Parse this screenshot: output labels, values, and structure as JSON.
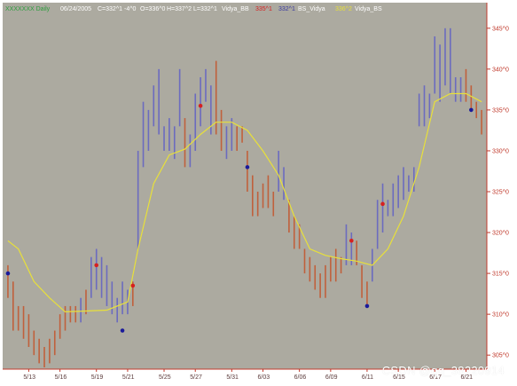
{
  "header": {
    "symbol": "XXXXXXX Daily",
    "date": "06/24/2005",
    "close": "C=332^1",
    "change": "-4^0",
    "open": "O=336^0",
    "high": "H=337^2",
    "low": "L=332^1",
    "ind1": "Vidya_BB",
    "ind1_val": "335^1",
    "ind2_val": "332^1",
    "ind2": "BS_Vidya",
    "ind3_val": "336^2",
    "ind3": "Vidya_BS"
  },
  "watermark": "CSDN @qq_38220914",
  "colors": {
    "background": "#acaaa0",
    "up_bar": "#6b6bbf",
    "down_bar": "#c0603c",
    "vidya_line": "#e8e03a",
    "buy_dot": "#1a1a9a",
    "sell_dot": "#d62020",
    "axis_text": "#c0392b"
  },
  "chart_data": {
    "type": "ohlc",
    "title": "",
    "y_axis_labels": [
      "345^0",
      "340^0",
      "335^0",
      "330^0",
      "325^0",
      "320^0",
      "315^0",
      "310^0",
      "305^0"
    ],
    "y_axis_values": [
      345,
      340,
      335,
      330,
      325,
      320,
      315,
      310,
      305
    ],
    "ylim": [
      303.5,
      346.5
    ],
    "x_axis_labels": [
      "5/13",
      "5/16",
      "5/19",
      "5/21",
      "5/25",
      "5/27",
      "5/31",
      "6/03",
      "6/06",
      "6/09",
      "6/11",
      "6/15",
      "6/17",
      "6/21"
    ],
    "grid": false,
    "bars": [
      {
        "h": 316,
        "l": 312,
        "dir": "down"
      },
      {
        "h": 314,
        "l": 308,
        "dir": "down"
      },
      {
        "h": 311,
        "l": 308,
        "dir": "down"
      },
      {
        "h": 311,
        "l": 307,
        "dir": "down"
      },
      {
        "h": 310,
        "l": 306,
        "dir": "down"
      },
      {
        "h": 308,
        "l": 305,
        "dir": "down"
      },
      {
        "h": 307,
        "l": 304,
        "dir": "down"
      },
      {
        "h": 306,
        "l": 303.5,
        "dir": "down"
      },
      {
        "h": 307,
        "l": 304,
        "dir": "down"
      },
      {
        "h": 308,
        "l": 305,
        "dir": "down"
      },
      {
        "h": 310,
        "l": 307,
        "dir": "down"
      },
      {
        "h": 311,
        "l": 308,
        "dir": "down"
      },
      {
        "h": 311,
        "l": 309,
        "dir": "down"
      },
      {
        "h": 311,
        "l": 309,
        "dir": "down"
      },
      {
        "h": 312,
        "l": 309,
        "dir": "up"
      },
      {
        "h": 313,
        "l": 310,
        "dir": "down"
      },
      {
        "h": 317,
        "l": 312,
        "dir": "up"
      },
      {
        "h": 318,
        "l": 313,
        "dir": "up"
      },
      {
        "h": 317,
        "l": 312,
        "dir": "up"
      },
      {
        "h": 316,
        "l": 311,
        "dir": "up"
      },
      {
        "h": 314,
        "l": 310,
        "dir": "up"
      },
      {
        "h": 312,
        "l": 309,
        "dir": "up"
      },
      {
        "h": 314,
        "l": 310,
        "dir": "up"
      },
      {
        "h": 313,
        "l": 310,
        "dir": "up"
      },
      {
        "h": 314,
        "l": 311,
        "dir": "down"
      },
      {
        "h": 330,
        "l": 318,
        "dir": "up"
      },
      {
        "h": 336,
        "l": 328,
        "dir": "up"
      },
      {
        "h": 335,
        "l": 330,
        "dir": "up"
      },
      {
        "h": 338,
        "l": 333,
        "dir": "up"
      },
      {
        "h": 340,
        "l": 332,
        "dir": "up"
      },
      {
        "h": 333,
        "l": 330,
        "dir": "up"
      },
      {
        "h": 334,
        "l": 330,
        "dir": "up"
      },
      {
        "h": 333,
        "l": 329,
        "dir": "up"
      },
      {
        "h": 340,
        "l": 333,
        "dir": "up"
      },
      {
        "h": 334,
        "l": 328,
        "dir": "down"
      },
      {
        "h": 332,
        "l": 328,
        "dir": "up"
      },
      {
        "h": 337,
        "l": 330,
        "dir": "up"
      },
      {
        "h": 339,
        "l": 333,
        "dir": "up"
      },
      {
        "h": 340,
        "l": 336,
        "dir": "up"
      },
      {
        "h": 338,
        "l": 332,
        "dir": "up"
      },
      {
        "h": 341,
        "l": 332,
        "dir": "down"
      },
      {
        "h": 335,
        "l": 330,
        "dir": "down"
      },
      {
        "h": 333,
        "l": 329,
        "dir": "up"
      },
      {
        "h": 334,
        "l": 330,
        "dir": "up"
      },
      {
        "h": 333,
        "l": 330,
        "dir": "down"
      },
      {
        "h": 333,
        "l": 331,
        "dir": "down"
      },
      {
        "h": 330,
        "l": 325,
        "dir": "down"
      },
      {
        "h": 327,
        "l": 322,
        "dir": "down"
      },
      {
        "h": 325,
        "l": 322,
        "dir": "down"
      },
      {
        "h": 326,
        "l": 323,
        "dir": "down"
      },
      {
        "h": 327,
        "l": 323,
        "dir": "down"
      },
      {
        "h": 325,
        "l": 322,
        "dir": "down"
      },
      {
        "h": 330,
        "l": 325,
        "dir": "up"
      },
      {
        "h": 328,
        "l": 324,
        "dir": "up"
      },
      {
        "h": 324,
        "l": 320,
        "dir": "down"
      },
      {
        "h": 322,
        "l": 318,
        "dir": "down"
      },
      {
        "h": 321,
        "l": 318,
        "dir": "down"
      },
      {
        "h": 318,
        "l": 315,
        "dir": "down"
      },
      {
        "h": 317,
        "l": 314,
        "dir": "down"
      },
      {
        "h": 316,
        "l": 313,
        "dir": "down"
      },
      {
        "h": 315,
        "l": 312,
        "dir": "down"
      },
      {
        "h": 316,
        "l": 312,
        "dir": "down"
      },
      {
        "h": 317,
        "l": 314,
        "dir": "down"
      },
      {
        "h": 318,
        "l": 314,
        "dir": "down"
      },
      {
        "h": 317,
        "l": 315,
        "dir": "down"
      },
      {
        "h": 321,
        "l": 316,
        "dir": "up"
      },
      {
        "h": 320,
        "l": 316,
        "dir": "up"
      },
      {
        "h": 319,
        "l": 316,
        "dir": "down"
      },
      {
        "h": 316,
        "l": 312,
        "dir": "down"
      },
      {
        "h": 314,
        "l": 311,
        "dir": "down"
      },
      {
        "h": 318,
        "l": 314,
        "dir": "up"
      },
      {
        "h": 324,
        "l": 318,
        "dir": "up"
      },
      {
        "h": 326,
        "l": 320,
        "dir": "up"
      },
      {
        "h": 324,
        "l": 322,
        "dir": "up"
      },
      {
        "h": 326,
        "l": 322,
        "dir": "up"
      },
      {
        "h": 327,
        "l": 323,
        "dir": "up"
      },
      {
        "h": 328,
        "l": 324,
        "dir": "up"
      },
      {
        "h": 327,
        "l": 325,
        "dir": "up"
      },
      {
        "h": 328,
        "l": 325,
        "dir": "up"
      },
      {
        "h": 337,
        "l": 333,
        "dir": "up"
      },
      {
        "h": 338,
        "l": 333,
        "dir": "up"
      },
      {
        "h": 337,
        "l": 334,
        "dir": "up"
      },
      {
        "h": 344,
        "l": 337,
        "dir": "up"
      },
      {
        "h": 343,
        "l": 336,
        "dir": "up"
      },
      {
        "h": 345,
        "l": 338,
        "dir": "up"
      },
      {
        "h": 345,
        "l": 337,
        "dir": "up"
      },
      {
        "h": 339,
        "l": 336,
        "dir": "up"
      },
      {
        "h": 339,
        "l": 336,
        "dir": "up"
      },
      {
        "h": 340,
        "l": 336,
        "dir": "down"
      },
      {
        "h": 338,
        "l": 335,
        "dir": "down"
      },
      {
        "h": 336,
        "l": 334,
        "dir": "down"
      },
      {
        "h": 335,
        "l": 332,
        "dir": "down"
      }
    ],
    "vidya_line": [
      {
        "i": 0,
        "v": 319
      },
      {
        "i": 2,
        "v": 318
      },
      {
        "i": 5,
        "v": 314
      },
      {
        "i": 8,
        "v": 312
      },
      {
        "i": 11,
        "v": 310.3
      },
      {
        "i": 15,
        "v": 310.4
      },
      {
        "i": 19,
        "v": 310.5
      },
      {
        "i": 23,
        "v": 311.5
      },
      {
        "i": 25,
        "v": 318
      },
      {
        "i": 28,
        "v": 326
      },
      {
        "i": 31,
        "v": 329.5
      },
      {
        "i": 34,
        "v": 330.2
      },
      {
        "i": 37,
        "v": 332
      },
      {
        "i": 40,
        "v": 333.5
      },
      {
        "i": 43,
        "v": 333.5
      },
      {
        "i": 46,
        "v": 332.5
      },
      {
        "i": 49,
        "v": 330
      },
      {
        "i": 52,
        "v": 327
      },
      {
        "i": 55,
        "v": 322
      },
      {
        "i": 58,
        "v": 318
      },
      {
        "i": 61,
        "v": 317.2
      },
      {
        "i": 64,
        "v": 316.8
      },
      {
        "i": 67,
        "v": 316.5
      },
      {
        "i": 70,
        "v": 316
      },
      {
        "i": 73,
        "v": 318
      },
      {
        "i": 76,
        "v": 322
      },
      {
        "i": 79,
        "v": 328
      },
      {
        "i": 82,
        "v": 336
      },
      {
        "i": 85,
        "v": 337
      },
      {
        "i": 88,
        "v": 337
      },
      {
        "i": 91,
        "v": 336
      }
    ],
    "buy_signals": [
      {
        "i": 0,
        "v": 315
      },
      {
        "i": 22,
        "v": 308
      },
      {
        "i": 46,
        "v": 328
      },
      {
        "i": 69,
        "v": 311
      },
      {
        "i": 89,
        "v": 335
      }
    ],
    "sell_signals": [
      {
        "i": 17,
        "v": 316
      },
      {
        "i": 24,
        "v": 313.5
      },
      {
        "i": 37,
        "v": 335.5
      },
      {
        "i": 66,
        "v": 319
      },
      {
        "i": 72,
        "v": 323.5
      }
    ]
  }
}
